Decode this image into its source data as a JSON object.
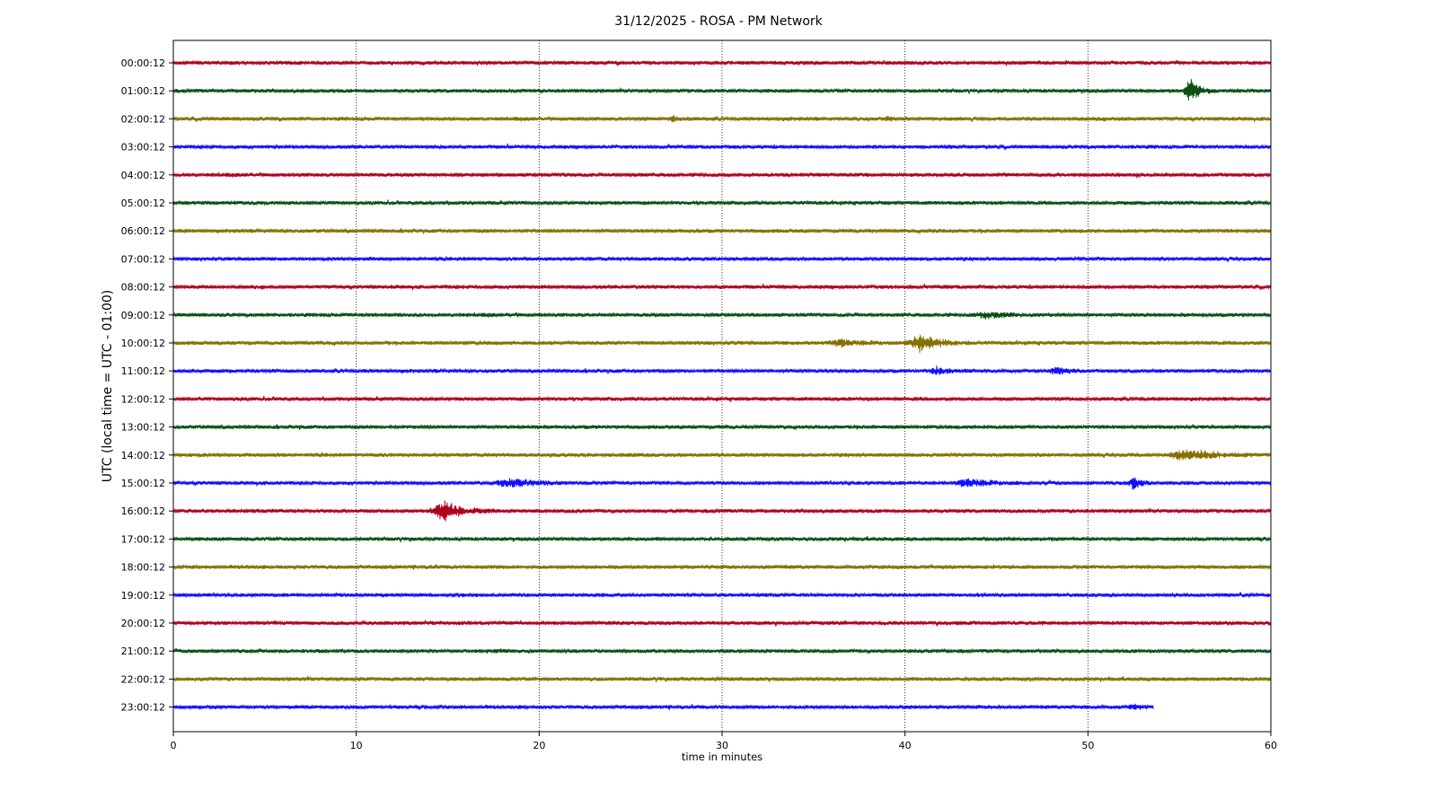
{
  "chart_data": {
    "type": "line",
    "title": "31/12/2025 - ROSA - PM Network",
    "xlabel": "time in minutes",
    "ylabel": "UTC (local time = UTC - 01:00)",
    "xlim": [
      0,
      60
    ],
    "x_ticks": [
      0,
      10,
      20,
      30,
      40,
      50,
      60
    ],
    "grid": "vertical dotted",
    "legend": "none",
    "trace_colors": [
      "#b00020",
      "#0b4f12",
      "#857000",
      "#1010ff"
    ],
    "rows": [
      {
        "label": "00:00:12",
        "end": 60,
        "events": []
      },
      {
        "label": "01:00:12",
        "end": 60,
        "events": [
          {
            "t": 55.6,
            "amp": 15,
            "dur": 1.5
          }
        ]
      },
      {
        "label": "02:00:12",
        "end": 60,
        "events": [
          {
            "t": 27.3,
            "amp": 4,
            "dur": 0.5
          },
          {
            "t": 39.0,
            "amp": 4,
            "dur": 0.5
          }
        ]
      },
      {
        "label": "03:00:12",
        "end": 60,
        "events": []
      },
      {
        "label": "04:00:12",
        "end": 60,
        "events": []
      },
      {
        "label": "05:00:12",
        "end": 60,
        "events": []
      },
      {
        "label": "06:00:12",
        "end": 60,
        "events": []
      },
      {
        "label": "07:00:12",
        "end": 60,
        "events": []
      },
      {
        "label": "08:00:12",
        "end": 60,
        "events": []
      },
      {
        "label": "09:00:12",
        "end": 60,
        "events": [
          {
            "t": 44.5,
            "amp": 4,
            "dur": 3
          }
        ]
      },
      {
        "label": "10:00:12",
        "end": 60,
        "events": [
          {
            "t": 40.8,
            "amp": 10,
            "dur": 3
          },
          {
            "t": 36.5,
            "amp": 4,
            "dur": 3
          }
        ]
      },
      {
        "label": "11:00:12",
        "end": 60,
        "events": [
          {
            "t": 41.7,
            "amp": 4,
            "dur": 2
          },
          {
            "t": 48.3,
            "amp": 5,
            "dur": 1.5
          }
        ]
      },
      {
        "label": "12:00:12",
        "end": 60,
        "events": []
      },
      {
        "label": "13:00:12",
        "end": 60,
        "events": []
      },
      {
        "label": "14:00:12",
        "end": 60,
        "events": [
          {
            "t": 55.5,
            "amp": 8,
            "dur": 4
          }
        ]
      },
      {
        "label": "15:00:12",
        "end": 60,
        "events": [
          {
            "t": 18.5,
            "amp": 5,
            "dur": 4
          },
          {
            "t": 43.5,
            "amp": 5,
            "dur": 3
          },
          {
            "t": 52.5,
            "amp": 8,
            "dur": 1
          }
        ]
      },
      {
        "label": "16:00:12",
        "end": 60,
        "events": [
          {
            "t": 14.8,
            "amp": 12,
            "dur": 3
          }
        ]
      },
      {
        "label": "17:00:12",
        "end": 60,
        "events": []
      },
      {
        "label": "18:00:12",
        "end": 60,
        "events": []
      },
      {
        "label": "19:00:12",
        "end": 60,
        "events": []
      },
      {
        "label": "20:00:12",
        "end": 60,
        "events": []
      },
      {
        "label": "21:00:12",
        "end": 60,
        "events": []
      },
      {
        "label": "22:00:12",
        "end": 60,
        "events": []
      },
      {
        "label": "23:00:12",
        "end": 53.6,
        "events": [
          {
            "t": 52.5,
            "amp": 3,
            "dur": 1.2
          }
        ]
      }
    ]
  }
}
